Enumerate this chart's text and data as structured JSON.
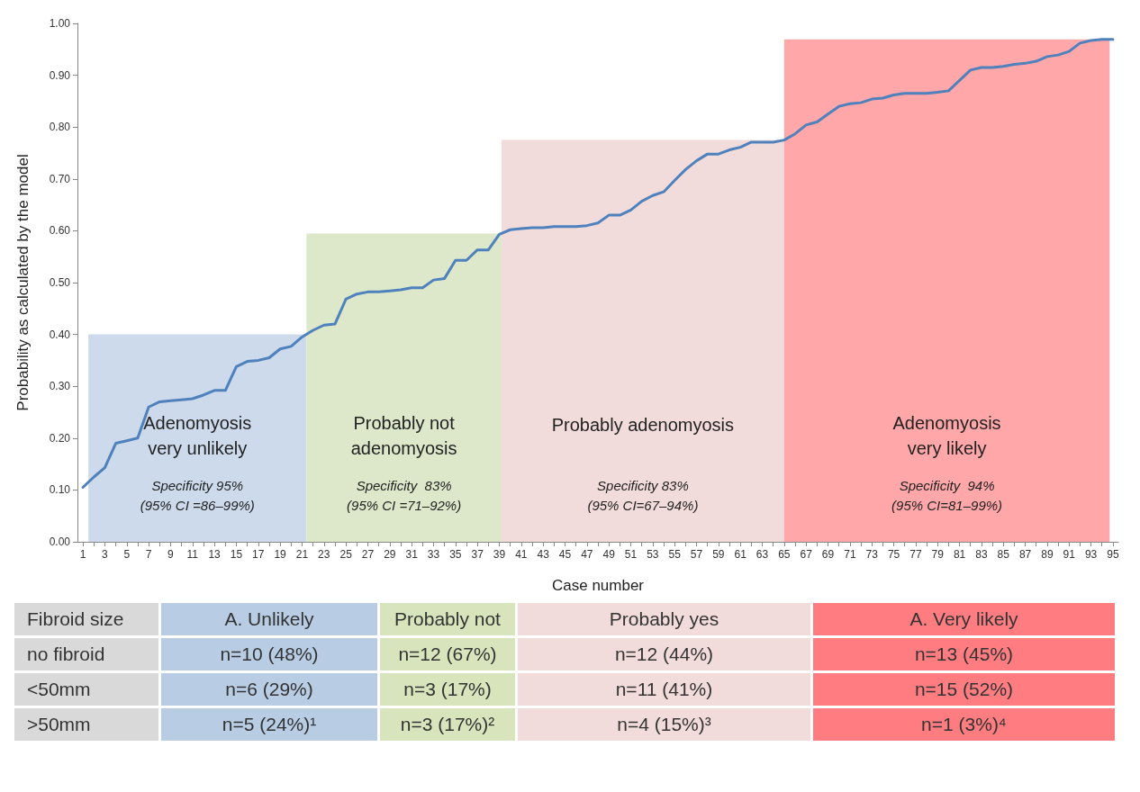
{
  "chart_data": [
    {
      "type": "line",
      "xlabel": "Case number",
      "ylabel": "Probability as calculated by the model",
      "x": [
        1,
        2,
        3,
        4,
        5,
        6,
        7,
        8,
        9,
        10,
        11,
        12,
        13,
        14,
        15,
        16,
        17,
        18,
        19,
        20,
        21,
        22,
        23,
        24,
        25,
        26,
        27,
        28,
        29,
        30,
        31,
        32,
        33,
        34,
        35,
        36,
        37,
        38,
        39,
        40,
        41,
        42,
        43,
        44,
        45,
        46,
        47,
        48,
        49,
        50,
        51,
        52,
        53,
        54,
        55,
        56,
        57,
        58,
        59,
        60,
        61,
        62,
        63,
        64,
        65,
        66,
        67,
        68,
        69,
        70,
        71,
        72,
        73,
        74,
        75,
        76,
        77,
        78,
        79,
        80,
        81,
        82,
        83,
        84,
        85,
        86,
        87,
        88,
        89,
        90,
        91,
        92,
        93,
        94,
        95
      ],
      "xlim": [
        0.5,
        95.5
      ],
      "xticks": [
        1,
        {
          "value": 2,
          "label": null
        },
        3,
        {
          "value": 4,
          "label": null
        },
        5,
        {
          "value": 6,
          "label": null
        },
        7,
        {
          "value": 8,
          "label": null
        },
        9,
        {
          "value": 10,
          "label": null
        },
        11,
        {
          "value": 12,
          "label": null
        },
        13,
        {
          "value": 14,
          "label": null
        },
        15,
        {
          "value": 16,
          "label": null
        },
        17,
        {
          "value": 18,
          "label": null
        },
        19,
        {
          "value": 20,
          "label": null
        },
        21,
        {
          "value": 22,
          "label": null
        },
        23,
        {
          "value": 24,
          "label": null
        },
        25,
        {
          "value": 26,
          "label": null
        },
        27,
        {
          "value": 28,
          "label": null
        },
        29,
        {
          "value": 30,
          "label": null
        },
        31,
        {
          "value": 32,
          "label": null
        },
        33,
        {
          "value": 34,
          "label": null
        },
        35,
        {
          "value": 36,
          "label": null
        },
        37,
        {
          "value": 38,
          "label": null
        },
        39,
        {
          "value": 40,
          "label": null
        },
        41,
        {
          "value": 42,
          "label": null
        },
        43,
        {
          "value": 44,
          "label": null
        },
        45,
        {
          "value": 46,
          "label": null
        },
        47,
        {
          "value": 48,
          "label": null
        },
        49,
        {
          "value": 50,
          "label": null
        },
        51,
        {
          "value": 52,
          "label": null
        },
        53,
        {
          "value": 54,
          "label": null
        },
        55,
        {
          "value": 56,
          "label": null
        },
        57,
        {
          "value": 58,
          "label": null
        },
        59,
        {
          "value": 60,
          "label": null
        },
        61,
        {
          "value": 62,
          "label": null
        },
        63,
        {
          "value": 64,
          "label": null
        },
        65,
        {
          "value": 66,
          "label": null
        },
        67,
        {
          "value": 68,
          "label": null
        },
        69,
        {
          "value": 70,
          "label": null
        },
        71,
        {
          "value": 72,
          "label": null
        },
        73,
        {
          "value": 74,
          "label": null
        },
        75,
        {
          "value": 76,
          "label": null
        },
        77,
        {
          "value": 78,
          "label": null
        },
        79,
        {
          "value": 80,
          "label": null
        },
        81,
        {
          "value": 82,
          "label": null
        },
        83,
        {
          "value": 84,
          "label": null
        },
        85,
        {
          "value": 86,
          "label": null
        },
        87,
        {
          "value": 88,
          "label": null
        },
        89,
        {
          "value": 90,
          "label": null
        },
        91,
        {
          "value": 92,
          "label": null
        },
        93,
        {
          "value": 94,
          "label": null
        },
        95
      ],
      "ylim": [
        0,
        1
      ],
      "yticks": [
        {
          "value": 0,
          "label": "0.00"
        },
        {
          "value": 0.1,
          "label": "0.10"
        },
        {
          "value": 0.2,
          "label": "0.20"
        },
        {
          "value": 0.3,
          "label": "0.30"
        },
        {
          "value": 0.4,
          "label": "0.40"
        },
        {
          "value": 0.5,
          "label": "0.50"
        },
        {
          "value": 0.6,
          "label": "0.60"
        },
        {
          "value": 0.7,
          "label": "0.70"
        },
        {
          "value": 0.8,
          "label": "0.80"
        },
        {
          "value": 0.9,
          "label": "0.90"
        },
        {
          "value": 1,
          "label": "1.00"
        }
      ],
      "grid": false,
      "marker": "none",
      "bands": [
        {
          "axis": "x",
          "from": 1.5,
          "to": 21.4,
          "label": "Adenomyosis\nvery unlikely",
          "color": "#ccdaeb"
        },
        {
          "axis": "x",
          "from": 21.4,
          "to": 39.2,
          "label": "Probably not\nadenomyosis",
          "color": "#dde8cb"
        },
        {
          "axis": "x",
          "from": 39.2,
          "to": 65,
          "label": "Probably adenomyosis",
          "color": "#f2dcdb"
        },
        {
          "axis": "x",
          "from": 65,
          "to": 94.7,
          "label": "Adenomyosis\nvery likely",
          "color": "#ffa7a9"
        }
      ],
      "series": [
        {
          "type": "line",
          "color": "#4f81bd",
          "values": [
            0.105,
            0.125,
            0.143,
            0.19,
            0.195,
            0.2,
            0.26,
            0.27,
            0.272,
            0.274,
            0.276,
            0.283,
            0.292,
            0.292,
            0.338,
            0.348,
            0.35,
            0.355,
            0.372,
            0.377,
            0.395,
            0.408,
            0.418,
            0.42,
            0.468,
            0.478,
            0.482,
            0.482,
            0.484,
            0.486,
            0.49,
            0.49,
            0.505,
            0.508,
            0.543,
            0.543,
            0.563,
            0.563,
            0.593,
            0.602,
            0.604,
            0.606,
            0.606,
            0.608,
            0.608,
            0.608,
            0.61,
            0.615,
            0.63,
            0.63,
            0.64,
            0.657,
            0.668,
            0.675,
            0.697,
            0.718,
            0.735,
            0.748,
            0.748,
            0.756,
            0.761,
            0.771,
            0.771,
            0.771,
            0.775,
            0.787,
            0.804,
            0.81,
            0.825,
            0.84,
            0.845,
            0.847,
            0.854,
            0.856,
            0.862,
            0.865,
            0.865,
            0.865,
            0.867,
            0.87,
            0.89,
            0.91,
            0.915,
            0.915,
            0.917,
            0.921,
            0.923,
            0.927,
            0.936,
            0.939,
            0.946,
            0.962,
            0.967,
            0.969,
            0.969
          ]
        }
      ],
      "annotations": [
        "Specificity 95%\n(95% CI =86–99%)",
        "Specificity  83%\n(95% CI =71–92%)",
        "Specificity 83%\n(95% CI=67–94%)",
        "Specificity  94%\n(95% CI=81–99%)"
      ]
    },
    {
      "type": "other",
      "colors": [
        "#d9d9d9",
        "#b8cce4",
        "#d7e4bc",
        "#f2dcdb",
        "#ff7c80"
      ],
      "annotations": [
        "Fibroid size",
        "A.     Unlikely",
        "Probably not",
        "Probably yes",
        "A. Very likely",
        "no fibroid",
        "n=10 (48%)",
        "n=12 (67%)",
        "n=12 (44%)",
        "n=13 (45%)",
        "<50mm",
        "n=6 (29%)",
        "n=3 (17%)",
        "n=11 (41%)",
        "n=15 (52%)",
        ">50mm",
        "n=5 (24%)¹",
        "n=3 (17%)²",
        "n=4 (15%)³",
        "n=1 (3%)⁴"
      ]
    }
  ]
}
